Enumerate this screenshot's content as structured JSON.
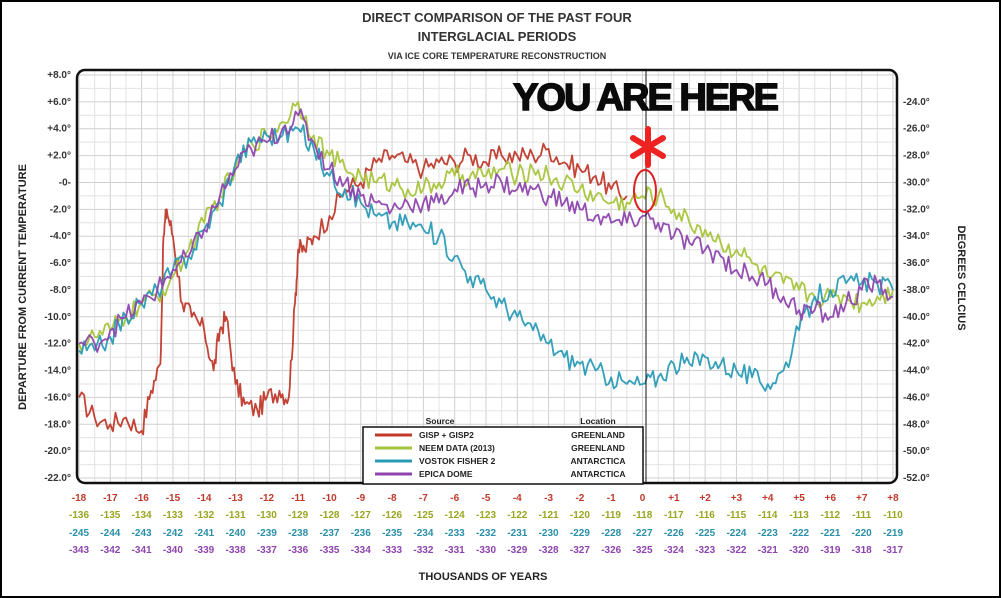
{
  "chart_data": {
    "type": "line",
    "title_line1": "DIRECT COMPARISON OF THE PAST FOUR",
    "title_line2": "INTERGLACIAL PERIODS",
    "subtitle": "VIA ICE CORE TEMPERATURE RECONSTRUCTION",
    "ylabel_left": "DEPARTURE FROM CURRENT TEMPERATURE",
    "ylabel_right": "DEGREES CELCIUS",
    "xlabel": "THOUSANDS OF YEARS",
    "annotation": "YOU ARE HERE",
    "ylim": [
      -22,
      8
    ],
    "xlim": [
      -18,
      8
    ],
    "grid": true,
    "legend_position": "bottom-center",
    "y_ticks_left": [
      "+8.0°",
      "+6.0°",
      "+4.0°",
      "+2.0°",
      "-0-",
      "-2.0°",
      "-4.0°",
      "-6.0°",
      "-8.0°",
      "-10.0°",
      "-12.0°",
      "-14.0°",
      "-16.0°",
      "-18.0°",
      "-20.0°",
      "-22.0°"
    ],
    "y_ticks_right": [
      "-24.0°",
      "-26.0°",
      "-28.0°",
      "-30.0°",
      "-32.0°",
      "-34.0°",
      "-36.0°",
      "-38.0°",
      "-40.0°",
      "-42.0°",
      "-44.0°",
      "-46.0°",
      "-48.0°",
      "-50.0°",
      "-52.0°"
    ],
    "x_tick_rows": [
      {
        "color": "#c0392b",
        "labels": [
          "-18",
          "-17",
          "-16",
          "-15",
          "-14",
          "-13",
          "-12",
          "-11",
          "-10",
          "-9",
          "-8",
          "-7",
          "-6",
          "-5",
          "-4",
          "-3",
          "-2",
          "-1",
          "0",
          "+1",
          "+2",
          "+3",
          "+4",
          "+5",
          "+6",
          "+7",
          "+8"
        ]
      },
      {
        "color": "#9aa520",
        "labels": [
          "-136",
          "-135",
          "-134",
          "-133",
          "-132",
          "-131",
          "-130",
          "-129",
          "-128",
          "-127",
          "-126",
          "-125",
          "-124",
          "-123",
          "-122",
          "-121",
          "-120",
          "-119",
          "-118",
          "-117",
          "-116",
          "-115",
          "-114",
          "-113",
          "-112",
          "-111",
          "-110"
        ]
      },
      {
        "color": "#2a8fa8",
        "labels": [
          "-245",
          "-244",
          "-243",
          "-242",
          "-241",
          "-240",
          "-239",
          "-238",
          "-237",
          "-236",
          "-235",
          "-234",
          "-233",
          "-232",
          "-231",
          "-230",
          "-229",
          "-228",
          "-227",
          "-226",
          "-225",
          "-224",
          "-223",
          "-222",
          "-221",
          "-220",
          "-219"
        ]
      },
      {
        "color": "#8e44ad",
        "labels": [
          "-343",
          "-342",
          "-341",
          "-340",
          "-339",
          "-338",
          "-337",
          "-336",
          "-335",
          "-334",
          "-333",
          "-332",
          "-331",
          "-330",
          "-329",
          "-328",
          "-327",
          "-326",
          "-325",
          "-324",
          "-323",
          "-322",
          "-321",
          "-320",
          "-319",
          "-318",
          "-317"
        ]
      }
    ],
    "legend": {
      "source_header": "Source",
      "location_header": "Location",
      "entries": [
        {
          "source": "GISP + GISP2",
          "location": "GREENLAND",
          "color": "#c0392b"
        },
        {
          "source": "NEEM DATA (2013)",
          "location": "GREENLAND",
          "color": "#a6c43a"
        },
        {
          "source": "VOSTOK FISHER 2",
          "location": "ANTARCTICA",
          "color": "#2a9bb5"
        },
        {
          "source": "EPICA DOME",
          "location": "ANTARCTICA",
          "color": "#8e44ad"
        }
      ]
    },
    "series": [
      {
        "color": "#c0392b",
        "x": [
          -18,
          -17.5,
          -17,
          -16.5,
          -16,
          -15.7,
          -15.4,
          -15.3,
          -15.2,
          -15,
          -14.7,
          -14.4,
          -14,
          -13.7,
          -13.5,
          -13.3,
          -13,
          -12.7,
          -12.3,
          -12,
          -11.6,
          -11.3,
          -11.1,
          -11,
          -10.8,
          -10.5,
          -10,
          -9.5,
          -9,
          -8.5,
          -8,
          -7.5,
          -7,
          -6.5,
          -6,
          -5.5,
          -5,
          -4.5,
          -4,
          -3.5,
          -3,
          -2.5,
          -2,
          -1.5,
          -1,
          -0.5
        ],
        "y": [
          -16,
          -17.5,
          -18,
          -17.5,
          -18.5,
          -15.5,
          -13.5,
          -4,
          -2,
          -4,
          -9,
          -10,
          -11,
          -14,
          -11,
          -10,
          -15,
          -16.5,
          -17,
          -16,
          -15.5,
          -16,
          -9,
          -5,
          -5,
          -4,
          -2.5,
          -0.5,
          0,
          1.5,
          2,
          1.5,
          1,
          1.5,
          1.5,
          2,
          1.5,
          2,
          2,
          2,
          2.5,
          1.5,
          1,
          0.5,
          -0.5,
          -1
        ]
      },
      {
        "color": "#a6c43a",
        "x": [
          -18,
          -17.5,
          -17,
          -16.5,
          -16,
          -15.5,
          -15,
          -14.5,
          -14,
          -13.5,
          -13,
          -12.5,
          -12,
          -11.5,
          -11,
          -10.5,
          -10,
          -9.5,
          -9,
          -8.5,
          -8,
          -7.5,
          -7,
          -6.5,
          -6,
          -5.5,
          -5,
          -4.5,
          -4,
          -3.5,
          -3,
          -2.5,
          -2,
          -1.5,
          -1,
          -0.5,
          0,
          0.5,
          1,
          1.5,
          2,
          2.5,
          3,
          3.5,
          4,
          4.5,
          5,
          5.5,
          6,
          6.5,
          7,
          7.5,
          8
        ],
        "y": [
          -12,
          -11.5,
          -11,
          -10,
          -9,
          -8.5,
          -7,
          -5,
          -3,
          -1,
          1,
          3,
          3.5,
          4.5,
          6,
          3.5,
          2,
          1,
          0.5,
          0,
          0,
          -0.5,
          -0.5,
          0,
          0.5,
          0.5,
          0.5,
          1,
          0.5,
          1,
          0.5,
          0,
          -0.5,
          -1,
          -1.5,
          -1.5,
          -1,
          -1,
          -2,
          -3,
          -3.5,
          -4.5,
          -5,
          -6,
          -7,
          -7.5,
          -8,
          -8.5,
          -8.5,
          -8.5,
          -9,
          -8.5,
          -8
        ]
      },
      {
        "color": "#2a9bb5",
        "x": [
          -18,
          -17.5,
          -17,
          -16.5,
          -16,
          -15.5,
          -15,
          -14.5,
          -14,
          -13.5,
          -13,
          -12.5,
          -12,
          -11.5,
          -11,
          -10.5,
          -10,
          -9.5,
          -9,
          -8.5,
          -8,
          -7.5,
          -7,
          -6.5,
          -6,
          -5.5,
          -5,
          -4.5,
          -4,
          -3.5,
          -3,
          -2.5,
          -2,
          -1.5,
          -1,
          -0.5,
          0,
          0.5,
          1,
          1.5,
          2,
          2.5,
          3,
          3.5,
          4,
          4.5,
          5,
          5.5,
          6,
          6.5,
          7,
          7.5,
          8
        ],
        "y": [
          -12.5,
          -12.5,
          -11.5,
          -10,
          -9,
          -8,
          -6.5,
          -5.5,
          -3.5,
          -1.5,
          1.5,
          3,
          3.5,
          3.5,
          4,
          2.5,
          0.5,
          -0.5,
          -1.5,
          -2.5,
          -3,
          -3,
          -3.5,
          -4,
          -5.5,
          -7,
          -8,
          -9,
          -10,
          -11,
          -12,
          -13,
          -13.5,
          -14,
          -14.5,
          -15,
          -15,
          -14.5,
          -13.5,
          -13.5,
          -13,
          -13.5,
          -14,
          -14.5,
          -15,
          -14,
          -11,
          -8.5,
          -8,
          -7.5,
          -7.5,
          -7.5,
          -8
        ]
      },
      {
        "color": "#8e44ad",
        "x": [
          -18,
          -17.5,
          -17,
          -16.5,
          -16,
          -15.5,
          -15,
          -14.5,
          -14,
          -13.5,
          -13,
          -12.5,
          -12,
          -11.5,
          -11,
          -10.5,
          -10,
          -9.5,
          -9,
          -8.5,
          -8,
          -7.5,
          -7,
          -6.5,
          -6,
          -5.5,
          -5,
          -4.5,
          -4,
          -3.5,
          -3,
          -2.5,
          -2,
          -1.5,
          -1,
          -0.5,
          0,
          0.5,
          1,
          1.5,
          2,
          2.5,
          3,
          3.5,
          4,
          4.5,
          5,
          5.5,
          6,
          6.5,
          7,
          7.5,
          8
        ],
        "y": [
          -12,
          -12,
          -11,
          -10,
          -9,
          -8,
          -6.5,
          -5.5,
          -3.5,
          -1,
          1,
          2.5,
          3,
          4,
          5,
          3,
          1,
          0,
          -1,
          -1.5,
          -2,
          -1.5,
          -1.5,
          -1.5,
          -0.5,
          -0.5,
          0,
          0,
          -0.5,
          -0.5,
          -1,
          -1.5,
          -2,
          -2.5,
          -3,
          -3,
          -2.5,
          -3,
          -4,
          -4.5,
          -5,
          -5.5,
          -6.5,
          -7,
          -7.5,
          -8.5,
          -9.5,
          -9.5,
          -10,
          -9,
          -8,
          -7.5,
          -8.5
        ]
      }
    ]
  }
}
